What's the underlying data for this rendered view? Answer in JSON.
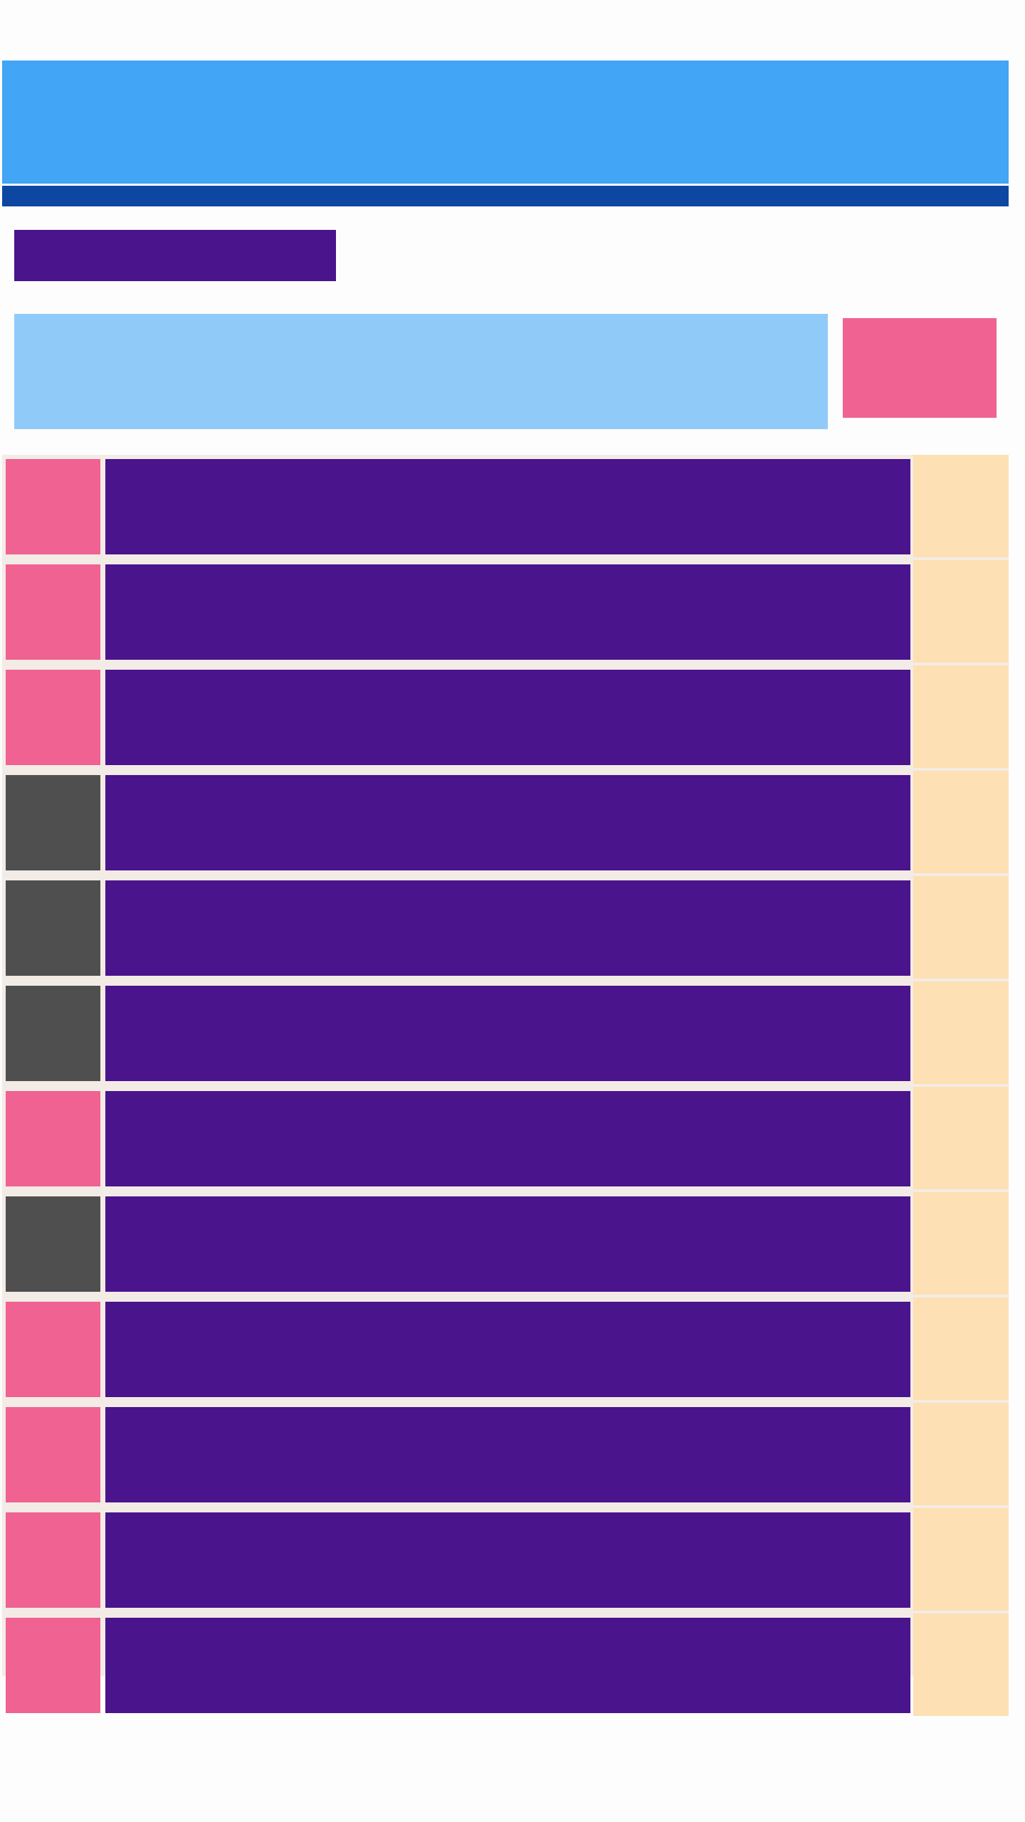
{
  "app": {
    "title": "",
    "app_bar_color": "#42a5f5",
    "tab_strip_color": "#0d47a1"
  },
  "header": {
    "heading": "",
    "heading_color": "#4a148c"
  },
  "search": {
    "placeholder": "",
    "color": "#90caf9"
  },
  "action": {
    "label": "",
    "color": "#f06292"
  },
  "list": {
    "panel_color": "#f3ece6",
    "side_color": "#fde0b3",
    "body_color": "#4a148c",
    "items": [
      {
        "tag_color": "#f06292",
        "label": ""
      },
      {
        "tag_color": "#f06292",
        "label": ""
      },
      {
        "tag_color": "#f06292",
        "label": ""
      },
      {
        "tag_color": "#4f4f4f",
        "label": ""
      },
      {
        "tag_color": "#4f4f4f",
        "label": ""
      },
      {
        "tag_color": "#4f4f4f",
        "label": ""
      },
      {
        "tag_color": "#f06292",
        "label": ""
      },
      {
        "tag_color": "#4f4f4f",
        "label": ""
      },
      {
        "tag_color": "#f06292",
        "label": ""
      },
      {
        "tag_color": "#f06292",
        "label": ""
      },
      {
        "tag_color": "#f06292",
        "label": ""
      },
      {
        "tag_color": "#f06292",
        "label": ""
      }
    ]
  }
}
